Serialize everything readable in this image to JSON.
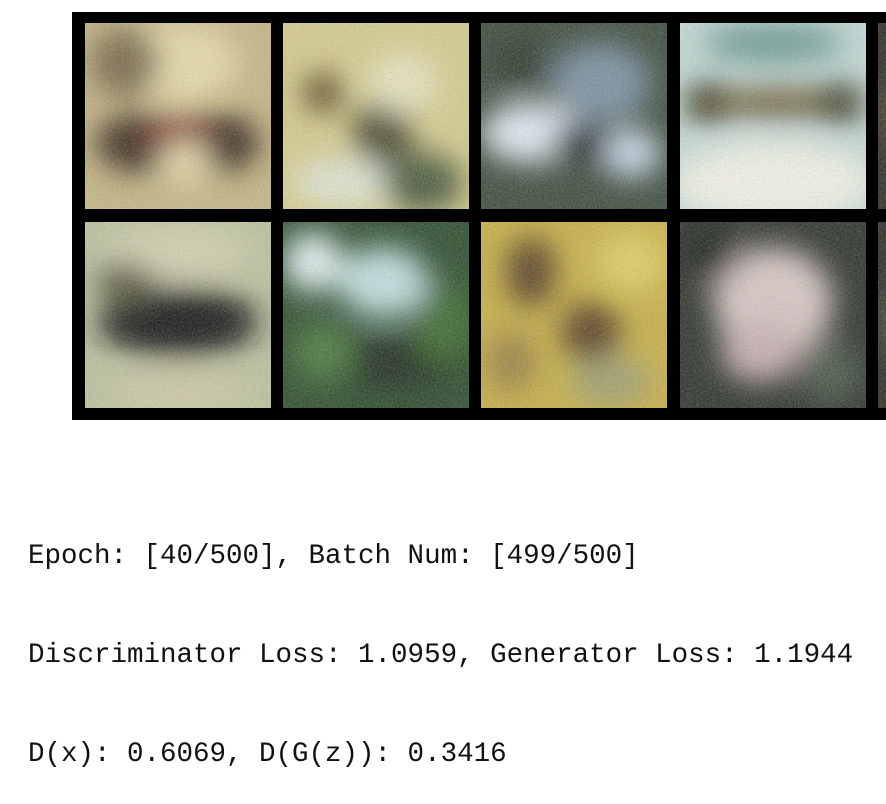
{
  "output": {
    "lines": [
      "Epoch: [40/500], Batch Num: [499/500]",
      "Discriminator Loss: 1.0959, Generator Loss: 1.1944",
      "D(x): 0.6069, D(G(z)): 0.3416"
    ]
  }
}
